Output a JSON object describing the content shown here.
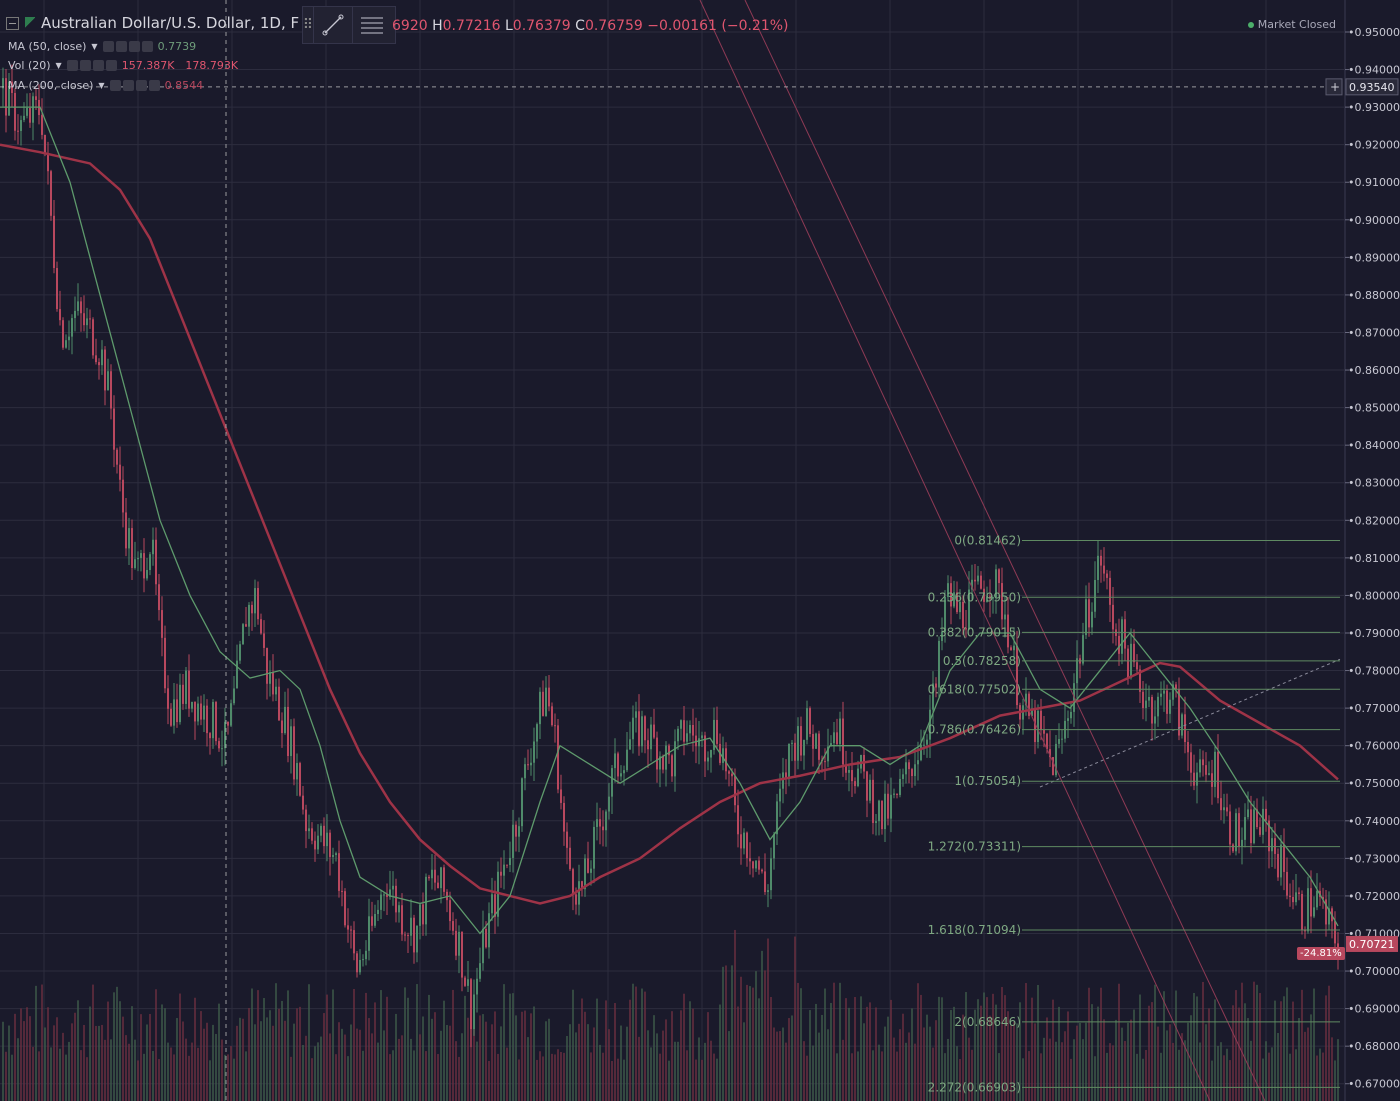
{
  "header": {
    "symbol_title": "Australian Dollar/U.S. Dollar, 1D, F",
    "ohlc": {
      "open_fragment": "6920",
      "h_label": "H",
      "high": "0.77216",
      "l_label": "L",
      "low": "0.76379",
      "c_label": "C",
      "close": "0.76759",
      "change": "−0.00161 (−0.21%)"
    },
    "market_status": "Market Closed"
  },
  "indicators": [
    {
      "label": "MA (50, close)",
      "value": "0.7739"
    },
    {
      "label": "Vol (20)",
      "value": "157.387K",
      "value2": "178.793K"
    },
    {
      "label": "MA (200, close)",
      "value": "0.8544"
    }
  ],
  "toolbox": {
    "items": [
      "trendline-tool",
      "fib-retracement-tool"
    ]
  },
  "colors": {
    "background": "#1a1a2b",
    "grid": "#2c2c3e",
    "up": "#4f8a6a",
    "down": "#b8485e",
    "ma50": "#5e9a6c",
    "ma200": "#9e3347",
    "fib": "#5f8a62",
    "channel": "#8e3a55",
    "crosshair": "#cfcfcf"
  },
  "price_axis": {
    "ticks": [
      "0.95000",
      "0.94000",
      "0.93000",
      "0.92000",
      "0.91000",
      "0.90000",
      "0.89000",
      "0.88000",
      "0.87000",
      "0.86000",
      "0.85000",
      "0.84000",
      "0.83000",
      "0.82000",
      "0.81000",
      "0.80000",
      "0.79000",
      "0.78000",
      "0.77000",
      "0.76000",
      "0.75000",
      "0.74000",
      "0.73000",
      "0.72000",
      "0.71000",
      "0.70000",
      "0.69000",
      "0.68000",
      "0.67000"
    ],
    "crosshair_price": "0.93540",
    "last_price": "0.70721",
    "pct_badge": "-24.81%"
  },
  "chart_data": {
    "type": "candlestick",
    "instrument": "Australian Dollar/U.S. Dollar",
    "interval": "1D",
    "y_range": [
      0.667,
      0.95
    ],
    "fib_levels": [
      {
        "label": "0(0.81462)",
        "price": 0.81462
      },
      {
        "label": "0.236(0.79950)",
        "price": 0.7995
      },
      {
        "label": "0.382(0.79015)",
        "price": 0.79015
      },
      {
        "label": "0.5(0.78258)",
        "price": 0.78258
      },
      {
        "label": "0.618(0.77502)",
        "price": 0.77502
      },
      {
        "label": "0.786(0.76426)",
        "price": 0.76426
      },
      {
        "label": "1(0.75054)",
        "price": 0.75054
      },
      {
        "label": "1.272(0.73311)",
        "price": 0.73311
      },
      {
        "label": "1.618(0.71094)",
        "price": 0.71094
      },
      {
        "label": "2(0.68646)",
        "price": 0.68646
      },
      {
        "label": "2.272(0.66903)",
        "price": 0.66903
      }
    ],
    "close_path": [
      [
        0,
        0.935
      ],
      [
        20,
        0.925
      ],
      [
        40,
        0.93
      ],
      [
        50,
        0.9
      ],
      [
        60,
        0.87
      ],
      [
        75,
        0.875
      ],
      [
        90,
        0.87
      ],
      [
        100,
        0.865
      ],
      [
        110,
        0.85
      ],
      [
        120,
        0.825
      ],
      [
        135,
        0.805
      ],
      [
        150,
        0.815
      ],
      [
        160,
        0.785
      ],
      [
        170,
        0.77
      ],
      [
        185,
        0.775
      ],
      [
        200,
        0.77
      ],
      [
        215,
        0.765
      ],
      [
        225,
        0.76
      ],
      [
        235,
        0.775
      ],
      [
        245,
        0.795
      ],
      [
        255,
        0.8
      ],
      [
        265,
        0.78
      ],
      [
        280,
        0.77
      ],
      [
        295,
        0.755
      ],
      [
        305,
        0.74
      ],
      [
        320,
        0.735
      ],
      [
        335,
        0.73
      ],
      [
        345,
        0.715
      ],
      [
        355,
        0.7
      ],
      [
        370,
        0.71
      ],
      [
        385,
        0.725
      ],
      [
        400,
        0.715
      ],
      [
        415,
        0.71
      ],
      [
        430,
        0.725
      ],
      [
        445,
        0.72
      ],
      [
        460,
        0.705
      ],
      [
        470,
        0.69
      ],
      [
        485,
        0.71
      ],
      [
        500,
        0.725
      ],
      [
        515,
        0.74
      ],
      [
        530,
        0.76
      ],
      [
        545,
        0.775
      ],
      [
        555,
        0.76
      ],
      [
        565,
        0.73
      ],
      [
        580,
        0.72
      ],
      [
        595,
        0.735
      ],
      [
        610,
        0.75
      ],
      [
        625,
        0.76
      ],
      [
        640,
        0.765
      ],
      [
        655,
        0.76
      ],
      [
        670,
        0.755
      ],
      [
        685,
        0.765
      ],
      [
        700,
        0.76
      ],
      [
        715,
        0.765
      ],
      [
        725,
        0.755
      ],
      [
        735,
        0.74
      ],
      [
        745,
        0.735
      ],
      [
        755,
        0.73
      ],
      [
        765,
        0.72
      ],
      [
        775,
        0.74
      ],
      [
        790,
        0.76
      ],
      [
        805,
        0.765
      ],
      [
        820,
        0.76
      ],
      [
        835,
        0.765
      ],
      [
        850,
        0.755
      ],
      [
        865,
        0.75
      ],
      [
        880,
        0.74
      ],
      [
        895,
        0.745
      ],
      [
        910,
        0.755
      ],
      [
        925,
        0.765
      ],
      [
        935,
        0.775
      ],
      [
        945,
        0.8
      ],
      [
        960,
        0.795
      ],
      [
        975,
        0.8
      ],
      [
        990,
        0.805
      ],
      [
        1005,
        0.795
      ],
      [
        1020,
        0.77
      ],
      [
        1035,
        0.765
      ],
      [
        1050,
        0.755
      ],
      [
        1060,
        0.76
      ],
      [
        1075,
        0.78
      ],
      [
        1090,
        0.8
      ],
      [
        1100,
        0.81
      ],
      [
        1110,
        0.795
      ],
      [
        1125,
        0.785
      ],
      [
        1140,
        0.775
      ],
      [
        1155,
        0.77
      ],
      [
        1170,
        0.775
      ],
      [
        1185,
        0.76
      ],
      [
        1200,
        0.75
      ],
      [
        1215,
        0.755
      ],
      [
        1225,
        0.74
      ],
      [
        1240,
        0.735
      ],
      [
        1255,
        0.74
      ],
      [
        1270,
        0.735
      ],
      [
        1285,
        0.725
      ],
      [
        1300,
        0.715
      ],
      [
        1315,
        0.72
      ],
      [
        1330,
        0.71
      ],
      [
        1338,
        0.707
      ]
    ],
    "ma200_path": [
      [
        0,
        0.92
      ],
      [
        40,
        0.918
      ],
      [
        90,
        0.915
      ],
      [
        120,
        0.908
      ],
      [
        150,
        0.895
      ],
      [
        180,
        0.875
      ],
      [
        210,
        0.855
      ],
      [
        240,
        0.835
      ],
      [
        270,
        0.815
      ],
      [
        300,
        0.795
      ],
      [
        330,
        0.775
      ],
      [
        360,
        0.758
      ],
      [
        390,
        0.745
      ],
      [
        420,
        0.735
      ],
      [
        450,
        0.728
      ],
      [
        480,
        0.722
      ],
      [
        510,
        0.72
      ],
      [
        540,
        0.718
      ],
      [
        570,
        0.72
      ],
      [
        600,
        0.725
      ],
      [
        640,
        0.73
      ],
      [
        680,
        0.738
      ],
      [
        720,
        0.745
      ],
      [
        760,
        0.75
      ],
      [
        800,
        0.752
      ],
      [
        850,
        0.755
      ],
      [
        900,
        0.757
      ],
      [
        950,
        0.762
      ],
      [
        1000,
        0.768
      ],
      [
        1040,
        0.77
      ],
      [
        1080,
        0.772
      ],
      [
        1120,
        0.777
      ],
      [
        1160,
        0.782
      ],
      [
        1180,
        0.781
      ],
      [
        1220,
        0.772
      ],
      [
        1260,
        0.766
      ],
      [
        1300,
        0.76
      ],
      [
        1338,
        0.751
      ]
    ],
    "ma50_path": [
      [
        0,
        0.93
      ],
      [
        40,
        0.93
      ],
      [
        70,
        0.91
      ],
      [
        100,
        0.88
      ],
      [
        130,
        0.85
      ],
      [
        160,
        0.82
      ],
      [
        190,
        0.8
      ],
      [
        220,
        0.785
      ],
      [
        250,
        0.778
      ],
      [
        280,
        0.78
      ],
      [
        300,
        0.775
      ],
      [
        320,
        0.76
      ],
      [
        340,
        0.74
      ],
      [
        360,
        0.725
      ],
      [
        390,
        0.72
      ],
      [
        420,
        0.718
      ],
      [
        450,
        0.72
      ],
      [
        480,
        0.71
      ],
      [
        510,
        0.72
      ],
      [
        540,
        0.745
      ],
      [
        560,
        0.76
      ],
      [
        590,
        0.755
      ],
      [
        620,
        0.75
      ],
      [
        650,
        0.755
      ],
      [
        680,
        0.76
      ],
      [
        710,
        0.762
      ],
      [
        740,
        0.75
      ],
      [
        770,
        0.735
      ],
      [
        800,
        0.745
      ],
      [
        830,
        0.76
      ],
      [
        860,
        0.76
      ],
      [
        890,
        0.755
      ],
      [
        920,
        0.76
      ],
      [
        950,
        0.78
      ],
      [
        980,
        0.79
      ],
      [
        1010,
        0.79
      ],
      [
        1040,
        0.775
      ],
      [
        1070,
        0.77
      ],
      [
        1100,
        0.78
      ],
      [
        1130,
        0.79
      ],
      [
        1160,
        0.78
      ],
      [
        1190,
        0.77
      ],
      [
        1220,
        0.758
      ],
      [
        1250,
        0.745
      ],
      [
        1280,
        0.735
      ],
      [
        1310,
        0.725
      ],
      [
        1338,
        0.712
      ]
    ]
  }
}
